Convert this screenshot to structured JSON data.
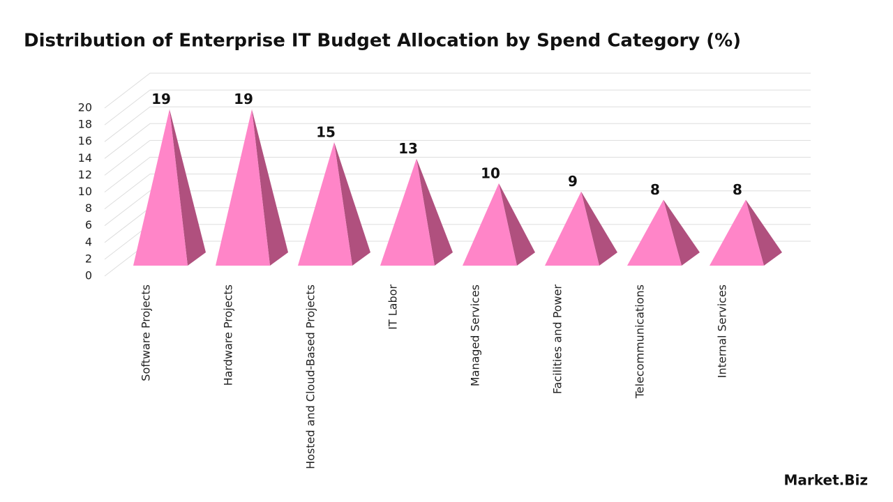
{
  "chart_data": {
    "type": "pyramid",
    "title": "Distribution of Enterprise IT Budget Allocation by Spend Category (%)",
    "categories": [
      "Software Projects",
      "Hardware Projects",
      "Hosted and Cloud-Based Projects",
      "IT Labor",
      "Managed Services",
      "Facilities and Power",
      "Telecommunications",
      "Internal Services"
    ],
    "values": [
      19,
      19,
      15,
      13,
      10,
      9,
      8,
      8
    ],
    "color": "#ff85c8",
    "side_color": "#b0507e",
    "ylim": [
      0,
      20
    ],
    "yticks": [
      0,
      2,
      4,
      6,
      8,
      10,
      12,
      14,
      16,
      18,
      20
    ],
    "grid": true,
    "watermark": "Market.Biz"
  }
}
